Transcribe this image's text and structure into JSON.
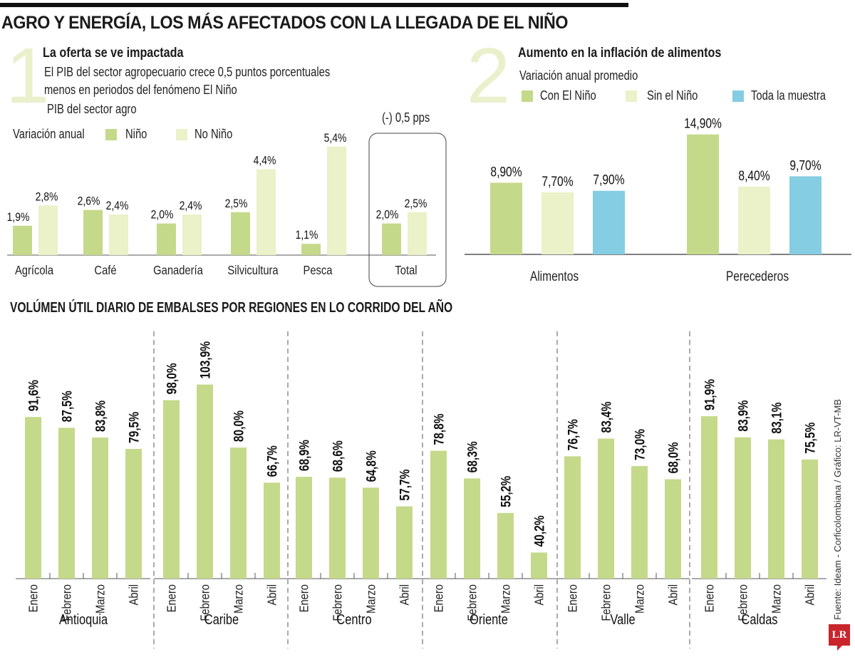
{
  "header": {
    "title": "AGRO Y ENERGÍA, LOS MÁS AFECTADOS CON LA LLEGADA DE EL NIÑO"
  },
  "section1": {
    "number": "1",
    "title": "La oferta se ve impactada",
    "desc_line1": "El PIB del sector agropecuario crece 0,5 puntos porcentuales",
    "desc_line2": "menos en periodos del fenómeno El Niño",
    "subtitle": "PIB del sector agro",
    "legend_label": "Variación anual",
    "highlight_note": "(-) 0,5 pps"
  },
  "section2": {
    "number": "2",
    "title": "Aumento en la inflación de alimentos",
    "subtitle": "Variación anual promedio"
  },
  "section3": {
    "title": "VOLÚMEN ÚTIL DIARIO DE EMBALSES POR REGIONES EN LO CORRIDO DEL AÑO"
  },
  "footer": {
    "source": "Fuente: Ideam - Corficolombiana / Gráfico: LR-VT-MB",
    "logo": "LR"
  },
  "colors": {
    "nino": "#c5d98a",
    "no_nino": "#ebf1c8",
    "toda_muestra": "#85cde3",
    "big_number": "#eaf0cc"
  },
  "chart_data": [
    {
      "type": "bar",
      "title": "PIB del sector agro",
      "ylabel": "Variación anual",
      "categories": [
        "Agrícola",
        "Café",
        "Ganadería",
        "Silvicultura",
        "Pesca",
        "Total"
      ],
      "series": [
        {
          "name": "Niño",
          "values": [
            1.9,
            2.6,
            2.0,
            2.5,
            1.1,
            2.0
          ],
          "labels": [
            "1,9%",
            "2,6%",
            "2,0%",
            "2,5%",
            "1,1%",
            "2,0%"
          ]
        },
        {
          "name": "No Niño",
          "values": [
            2.8,
            2.4,
            2.4,
            4.4,
            5.4,
            2.5
          ],
          "labels": [
            "2,8%",
            "2,4%",
            "2,4%",
            "4,4%",
            "5,4%",
            "2,5%"
          ]
        }
      ],
      "annotation": "(-) 0,5 pps",
      "legend": "top-left",
      "grid": false
    },
    {
      "type": "bar",
      "title": "Aumento en la inflación de alimentos",
      "subtitle": "Variación anual promedio",
      "categories": [
        "Alimentos",
        "Perecederos"
      ],
      "series": [
        {
          "name": "Con El Niño",
          "values": [
            8.9,
            14.9
          ],
          "labels": [
            "8,90%",
            "14,90%"
          ]
        },
        {
          "name": "Sin el Niño",
          "values": [
            7.7,
            8.4
          ],
          "labels": [
            "7,70%",
            "8,40%"
          ]
        },
        {
          "name": "Toda la muestra",
          "values": [
            7.9,
            9.7
          ],
          "labels": [
            "7,90%",
            "9,70%"
          ]
        }
      ],
      "ylim": [
        0,
        16
      ],
      "legend": "top",
      "grid": false
    },
    {
      "type": "bar",
      "title": "VOLÚMEN ÚTIL DIARIO DE EMBALSES POR REGIONES EN LO CORRIDO DEL AÑO",
      "months": [
        "Enero",
        "Febrero",
        "Marzo",
        "Abril"
      ],
      "groups": [
        {
          "name": "Antioquia",
          "values": [
            91.6,
            87.5,
            83.8,
            79.5
          ],
          "labels": [
            "91,6%",
            "87,5%",
            "83,8%",
            "79,5%"
          ]
        },
        {
          "name": "Caribe",
          "values": [
            98.0,
            103.9,
            80.0,
            66.7
          ],
          "labels": [
            "98,0%",
            "103,9%",
            "80,0%",
            "66,7%"
          ]
        },
        {
          "name": "Centro",
          "values": [
            68.9,
            68.6,
            64.8,
            57.7
          ],
          "labels": [
            "68,9%",
            "68,6%",
            "64,8%",
            "57,7%"
          ]
        },
        {
          "name": "Oriente",
          "values": [
            78.8,
            68.3,
            55.2,
            40.2
          ],
          "labels": [
            "78,8%",
            "68,3%",
            "55,2%",
            "40,2%"
          ]
        },
        {
          "name": "Valle",
          "values": [
            76.7,
            83.4,
            73.0,
            68.0
          ],
          "labels": [
            "76,7%",
            "83,4%",
            "73,0%",
            "68,0%"
          ]
        },
        {
          "name": "Caldas",
          "values": [
            91.9,
            83.9,
            83.1,
            75.5
          ],
          "labels": [
            "91,9%",
            "83,9%",
            "83,1%",
            "75,5%"
          ]
        }
      ],
      "grid": false
    }
  ]
}
